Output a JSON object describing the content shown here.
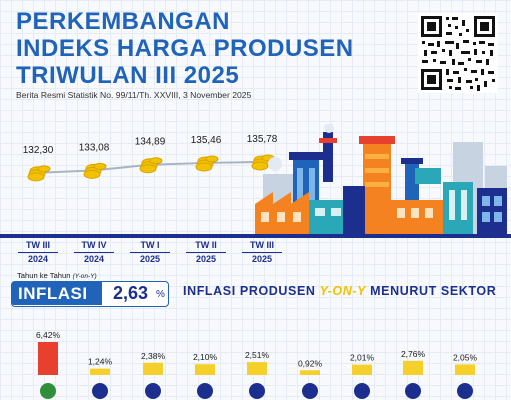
{
  "header": {
    "title_lines": [
      "PERKEMBANGAN",
      "INDEKS HARGA PRODUSEN",
      "TRIWULAN III 2025"
    ],
    "subtitle": "Berita Resmi Statistik No. 99/11/Th. XXVIII, 3 November 2025"
  },
  "inflation": {
    "caption": "Tahun ke Tahun",
    "caption_abbr": "(Y-on-Y)",
    "label": "INFLASI",
    "value": "2,63",
    "unit": "%"
  },
  "sector_title": {
    "part1": "INFLASI PRODUSEN",
    "highlight": "Y-ON-Y",
    "part2": "MENURUT SEKTOR"
  },
  "chart_data": [
    {
      "type": "line",
      "categories": [
        {
          "line1": "TW III",
          "line2": "2024"
        },
        {
          "line1": "TW IV",
          "line2": "2024"
        },
        {
          "line1": "TW I",
          "line2": "2025"
        },
        {
          "line1": "TW II",
          "line2": "2025"
        },
        {
          "line1": "TW III",
          "line2": "2025"
        }
      ],
      "values": [
        132.3,
        133.08,
        134.89,
        135.46,
        135.78
      ],
      "value_labels": [
        "132,30",
        "133,08",
        "134,89",
        "135,46",
        "135,78"
      ],
      "colors": {
        "line": "#a9b3c2",
        "coin": "#f2c200",
        "coin_dark": "#d9a300",
        "text": "#1a1a1a"
      }
    },
    {
      "type": "bar",
      "values": [
        6.42,
        1.24,
        2.38,
        2.1,
        2.51,
        0.92,
        2.01,
        2.76,
        2.05
      ],
      "value_labels": [
        "6,42%",
        "1,24%",
        "2,38%",
        "2,10%",
        "2,51%",
        "0,92%",
        "2,01%",
        "2,76%",
        "2,05%"
      ],
      "colors": {
        "highlight": "#e8402f",
        "bar": "#f5d02a",
        "text": "#1a1a1a"
      }
    }
  ]
}
